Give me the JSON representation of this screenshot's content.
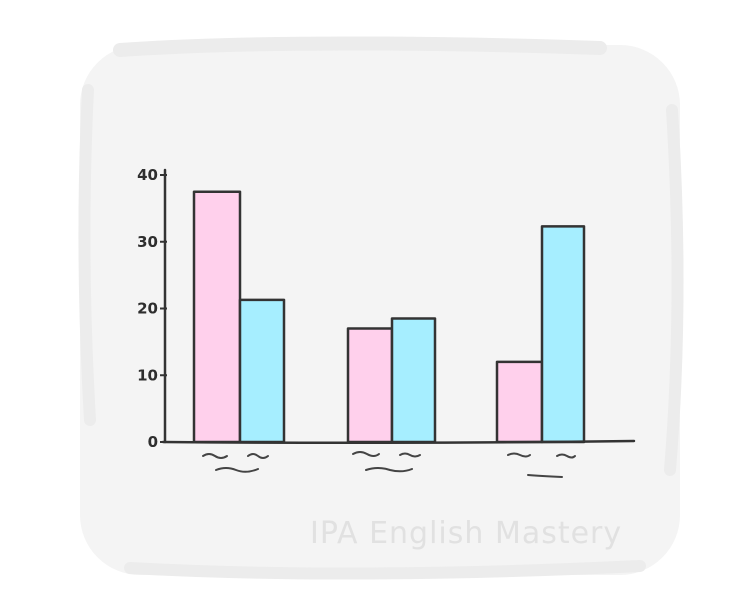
{
  "watermark": "IPA English Mastery",
  "colors": {
    "backdrop": "#f4f4f4",
    "series_1": "#ffd0ec",
    "series_2": "#a6eeff",
    "ink": "#333333"
  },
  "chart_data": {
    "type": "bar",
    "title": "",
    "xlabel": "",
    "ylabel": "",
    "ylim": [
      0,
      40
    ],
    "yticks": [
      0,
      10,
      20,
      30,
      40
    ],
    "categories": [
      "",
      "",
      ""
    ],
    "series": [
      {
        "values": [
          37.5,
          17,
          12
        ]
      },
      {
        "values": [
          21.3,
          18.5,
          32.3
        ]
      }
    ],
    "grid": false,
    "legend": "none"
  }
}
